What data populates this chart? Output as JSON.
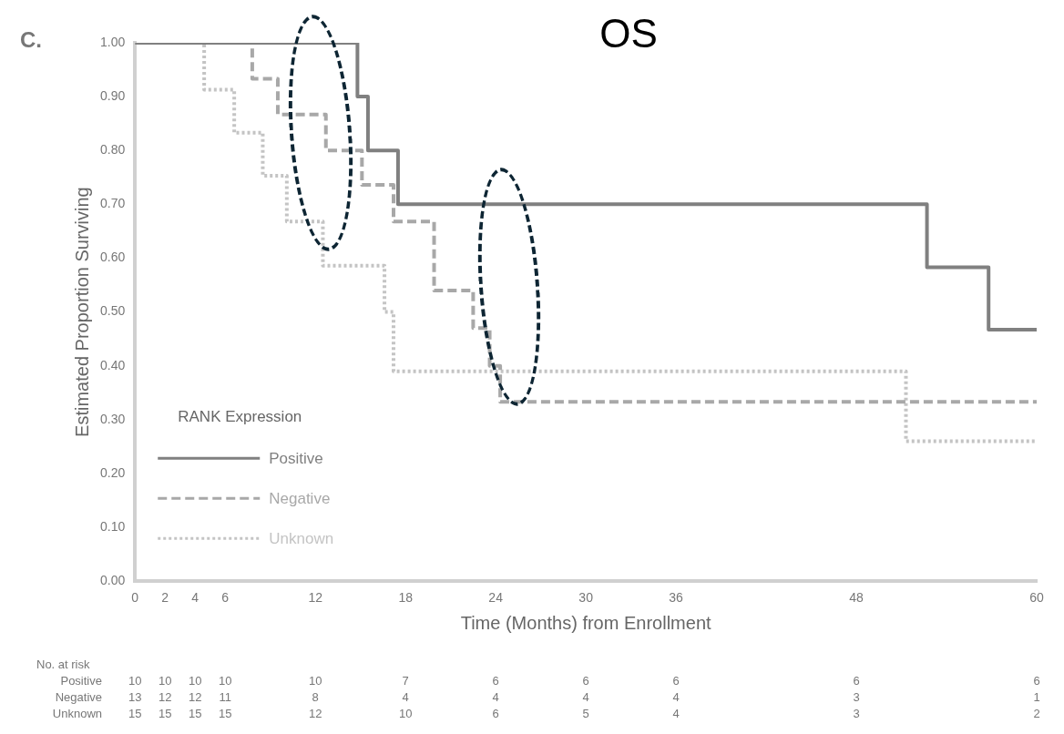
{
  "chart_data": {
    "type": "step",
    "title": "OS",
    "xlabel": "Time (Months) from Enrollment",
    "ylabel": "Estimated Proportion Surviving",
    "legend_title": "RANK Expression",
    "legend": "bottom left",
    "grid": false,
    "xlim": [
      0,
      60
    ],
    "xticks": [
      0,
      2,
      4,
      6,
      12,
      18,
      24,
      30,
      36,
      48,
      60
    ],
    "ylim": [
      0,
      1
    ],
    "yticks": [
      {
        "value": 0,
        "label": "0.00"
      },
      {
        "value": 0.1,
        "label": "0.10"
      },
      {
        "value": 0.2,
        "label": "0.20"
      },
      {
        "value": 0.3,
        "label": "0.30"
      },
      {
        "value": 0.4,
        "label": "0.40"
      },
      {
        "value": 0.5,
        "label": "0.50"
      },
      {
        "value": 0.6,
        "label": "0.60"
      },
      {
        "value": 0.7,
        "label": "0.70"
      },
      {
        "value": 0.8,
        "label": "0.80"
      },
      {
        "value": 0.9,
        "label": "0.90"
      },
      {
        "value": 1,
        "label": "1.00"
      }
    ],
    "series": [
      {
        "name": "Positive",
        "color": "#808080",
        "line_style": "solid",
        "x": [
          0,
          14.8,
          15.5,
          17.5,
          52.7,
          56.8,
          60
        ],
        "values": [
          1,
          0.9,
          0.8,
          0.7,
          0.583,
          0.467,
          0.467
        ]
      },
      {
        "name": "Negative",
        "color": "#a8a8a8",
        "line_style": "dashed",
        "x": [
          0,
          7.8,
          9.5,
          12.7,
          15.1,
          17.2,
          19.9,
          22.5,
          23.6,
          24.3,
          60
        ],
        "values": [
          1,
          0.933,
          0.867,
          0.8,
          0.736,
          0.668,
          0.54,
          0.47,
          0.4,
          0.333,
          0.333
        ]
      },
      {
        "name": "Unknown",
        "color": "#c4c4c4",
        "line_style": "dotted",
        "x": [
          0,
          4.6,
          6.6,
          8.5,
          10.1,
          12.5,
          16.6,
          17.2,
          51.3,
          60
        ],
        "values": [
          1,
          0.913,
          0.833,
          0.753,
          0.668,
          0.586,
          0.5,
          0.39,
          0.26,
          0.26
        ]
      }
    ],
    "annotations": [
      "C.",
      "No. at risk",
      "Positive 10 10 10 10 10 7 6 6 6 6 6",
      "Negative 13 12 12 11 8 4 4 4 4 3 1",
      "Unknown 15 15 15 15 12 10 6 5 4 3 2"
    ]
  }
}
